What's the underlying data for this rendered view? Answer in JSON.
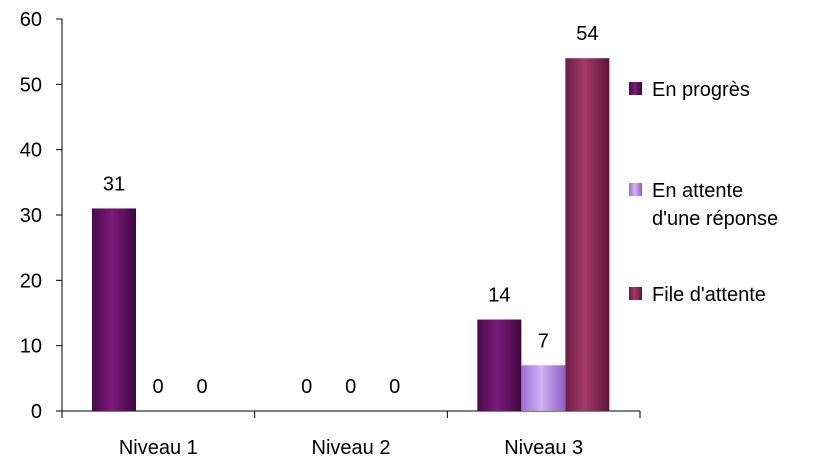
{
  "chart_data": {
    "type": "bar",
    "title": "",
    "xlabel": "",
    "ylabel": "",
    "ylim": [
      0,
      60
    ],
    "yticks": [
      0,
      10,
      20,
      30,
      40,
      50,
      60
    ],
    "grid": false,
    "legend_position": "right",
    "categories": [
      "Niveau 1",
      "Niveau 2",
      "Niveau 3"
    ],
    "series": [
      {
        "name": "En progrès",
        "values": [
          31,
          0,
          14
        ],
        "color": "#6B0F6B"
      },
      {
        "name": "En attente d'une réponse",
        "legend_lines": [
          "En attente",
          "d'une réponse"
        ],
        "values": [
          0,
          0,
          7
        ],
        "color": "#B98AE6"
      },
      {
        "name": "File d'attente",
        "values": [
          0,
          0,
          54
        ],
        "color": "#8E2A58"
      }
    ]
  }
}
